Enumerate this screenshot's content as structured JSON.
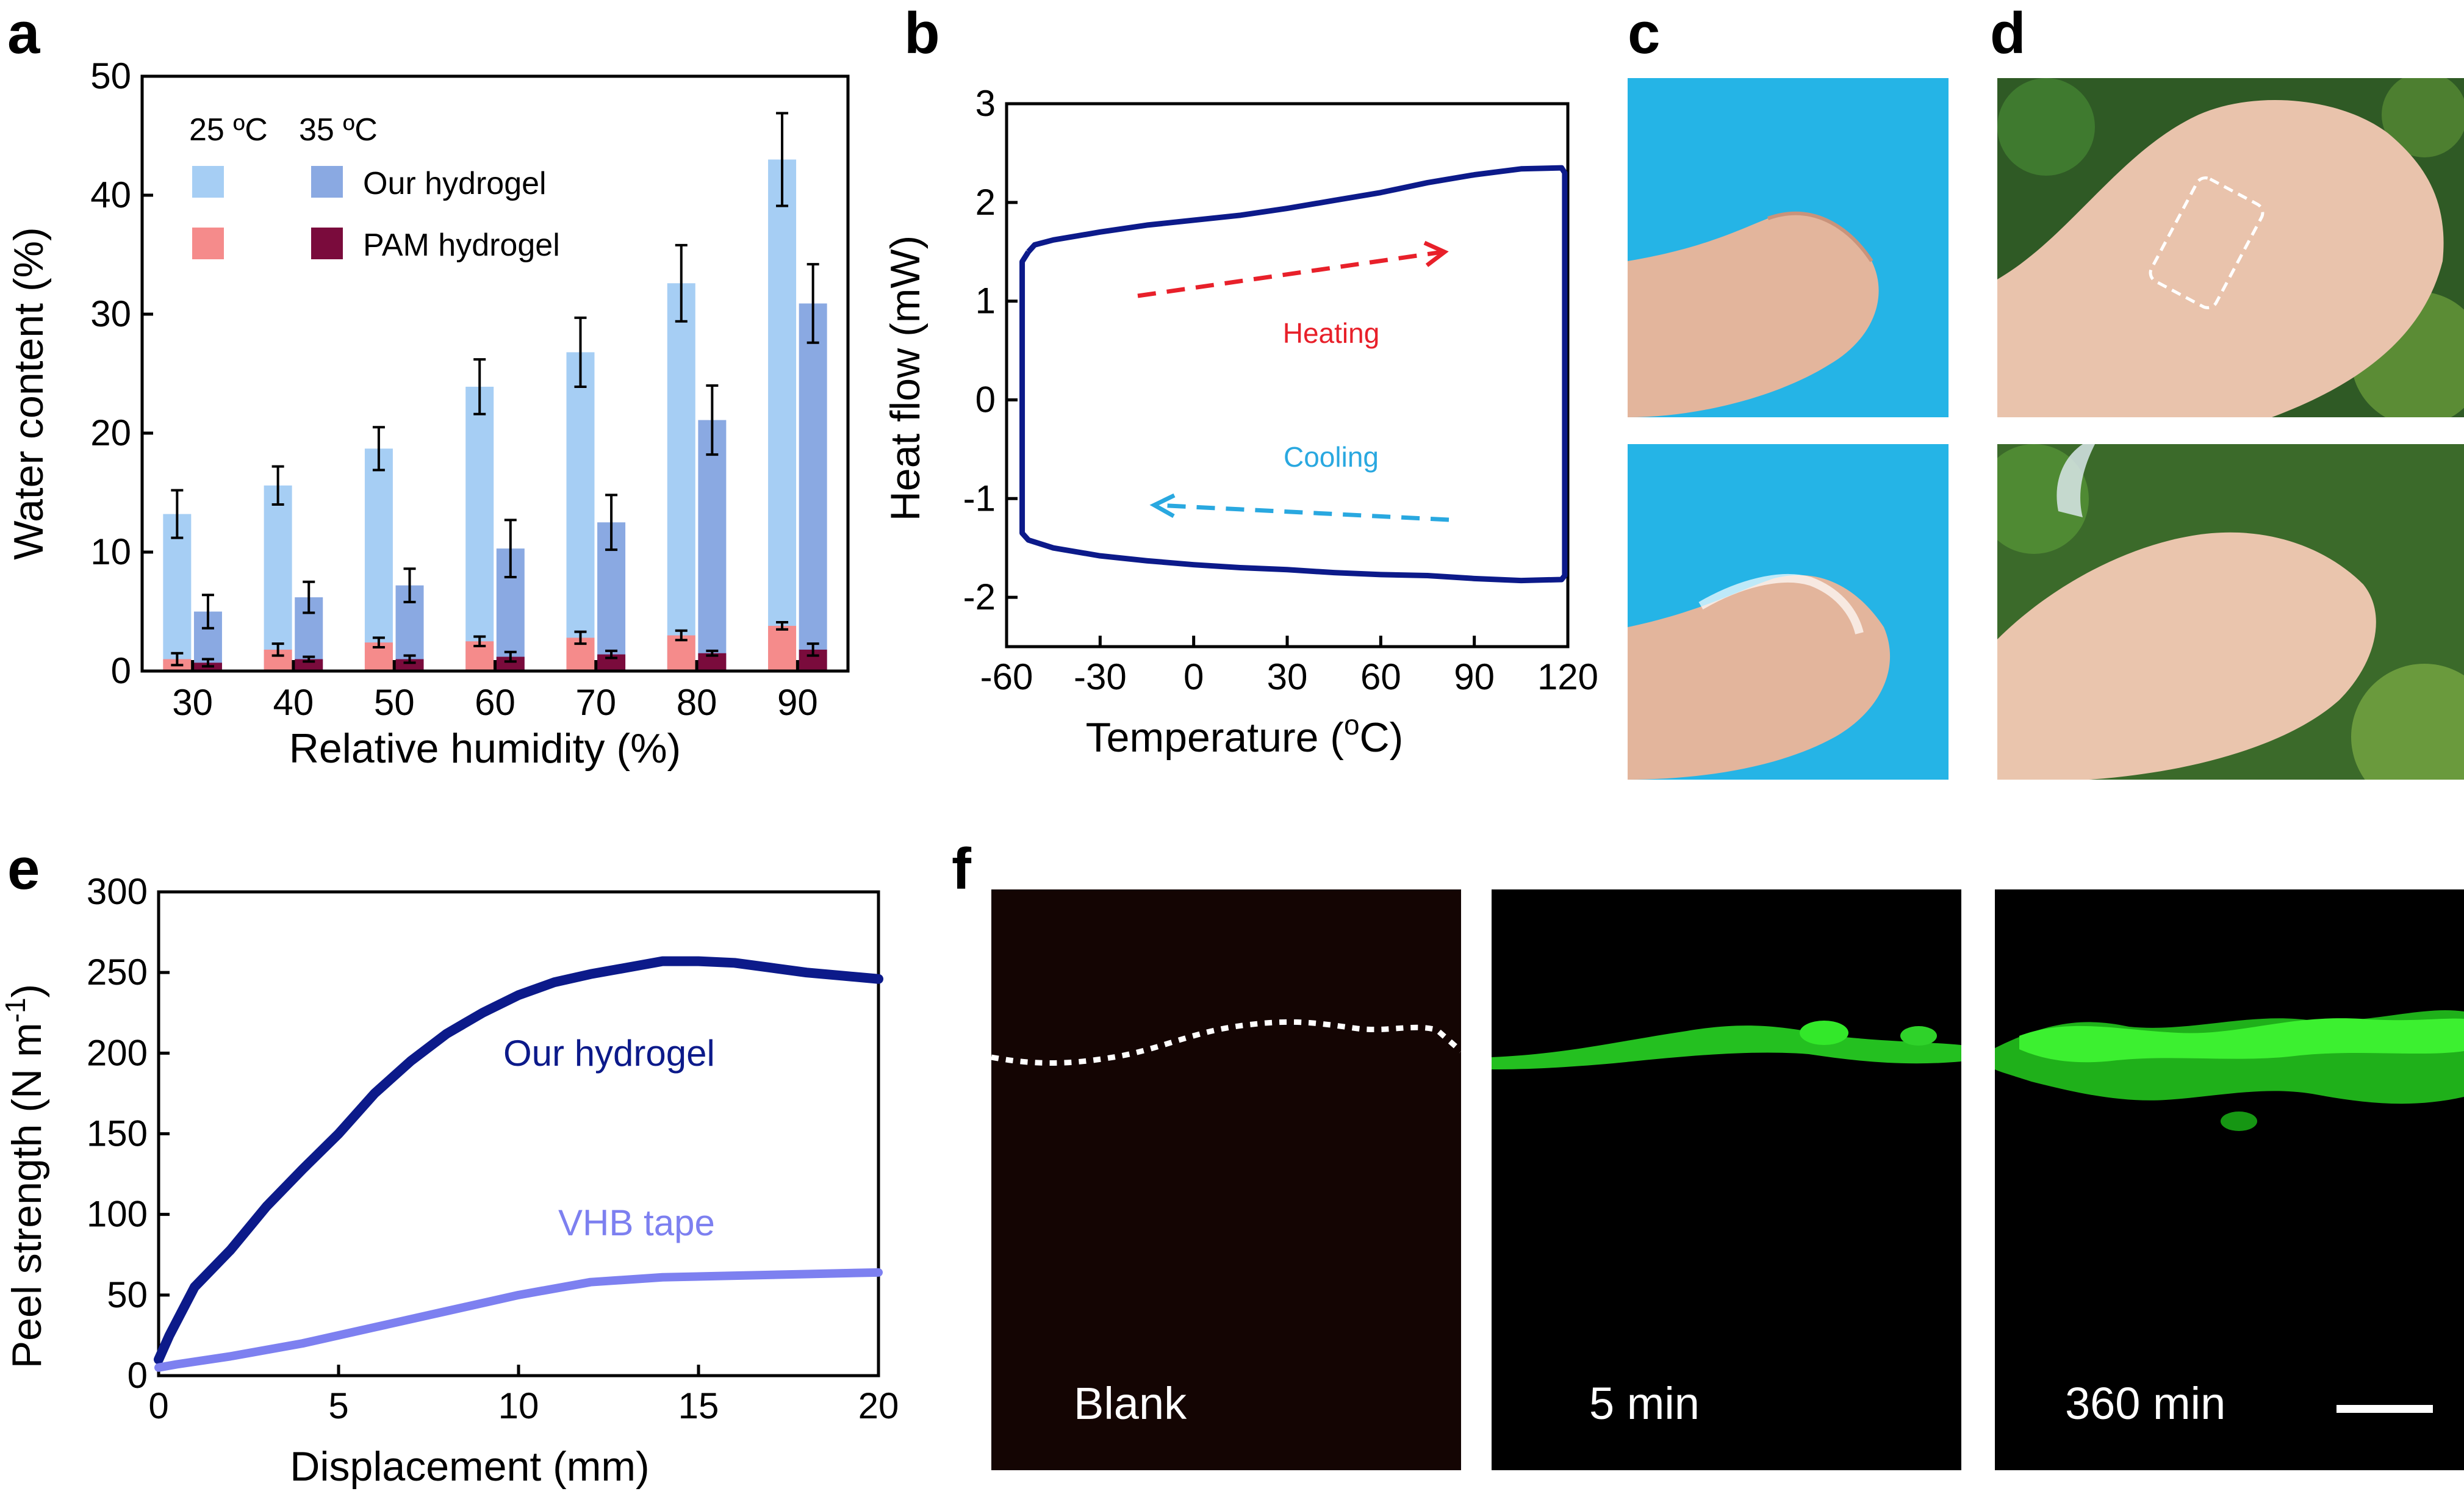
{
  "panels": {
    "a": "a",
    "b": "b",
    "c": "c",
    "d": "d",
    "e": "e",
    "f": "f"
  },
  "chart_data": [
    {
      "id": "a",
      "type": "bar",
      "title": "",
      "xlabel": "Relative humidity (%)",
      "ylabel": "Water content (%)",
      "ylim": [
        0,
        50
      ],
      "yticks": [
        0,
        10,
        20,
        30,
        40,
        50
      ],
      "categories": [
        "30",
        "40",
        "50",
        "60",
        "70",
        "80",
        "90"
      ],
      "legend": {
        "placement": "top-left",
        "header_25": "25 ºC",
        "header_35": "35 ºC",
        "our_label": "Our hydrogel",
        "pam_label": "PAM hydrogel"
      },
      "series": [
        {
          "name": "Our hydrogel 25 ºC",
          "color": "#a6cef4",
          "values": [
            13.2,
            15.6,
            18.7,
            23.9,
            26.8,
            32.6,
            43.0
          ],
          "errors": [
            2.0,
            1.6,
            1.8,
            2.3,
            2.9,
            3.2,
            3.9
          ]
        },
        {
          "name": "Our hydrogel 35 ºC",
          "color": "#8aa9e2",
          "values": [
            5.0,
            6.2,
            7.2,
            10.3,
            12.5,
            21.1,
            30.9
          ],
          "errors": [
            1.4,
            1.3,
            1.4,
            2.4,
            2.3,
            2.9,
            3.3
          ]
        },
        {
          "name": "PAM hydrogel 25 ºC",
          "color": "#f58b8b",
          "values": [
            1.0,
            1.8,
            2.4,
            2.5,
            2.8,
            3.0,
            3.8
          ],
          "errors": [
            0.5,
            0.5,
            0.4,
            0.4,
            0.5,
            0.4,
            0.3
          ]
        },
        {
          "name": "PAM hydrogel 35 ºC",
          "color": "#7a0b3c",
          "values": [
            0.7,
            1.0,
            1.0,
            1.2,
            1.4,
            1.5,
            1.8
          ],
          "errors": [
            0.3,
            0.2,
            0.3,
            0.4,
            0.3,
            0.2,
            0.5
          ]
        }
      ]
    },
    {
      "id": "b",
      "type": "line",
      "title": "",
      "xlabel": "Temperature (ºC)",
      "ylabel": "Heat flow (mW)",
      "xlim": [
        -60,
        120
      ],
      "ylim": [
        -2.5,
        3
      ],
      "xticks": [
        -60,
        -30,
        0,
        30,
        60,
        90,
        120
      ],
      "yticks": [
        -2,
        -1,
        0,
        1,
        2,
        3
      ],
      "color": "#0c1a8a",
      "arrow_heating_color": "#e8202a",
      "arrow_cooling_color": "#29a8e0",
      "annotations": {
        "heating": "Heating",
        "cooling": "Cooling"
      },
      "series": [
        {
          "name": "heating",
          "x": [
            -53,
            -51,
            -45,
            -30,
            -15,
            0,
            15,
            30,
            45,
            60,
            75,
            90,
            105,
            118
          ],
          "y": [
            1.5,
            1.57,
            1.62,
            1.7,
            1.77,
            1.82,
            1.87,
            1.94,
            2.02,
            2.1,
            2.2,
            2.28,
            2.34,
            2.35
          ]
        },
        {
          "name": "cooling",
          "x": [
            118,
            105,
            90,
            75,
            60,
            45,
            30,
            15,
            0,
            -15,
            -30,
            -45,
            -53
          ],
          "y": [
            -1.82,
            -1.83,
            -1.81,
            -1.78,
            -1.77,
            -1.75,
            -1.72,
            -1.7,
            -1.67,
            -1.63,
            -1.58,
            -1.5,
            -1.42
          ]
        }
      ]
    },
    {
      "id": "e",
      "type": "line",
      "title": "",
      "xlabel": "Displacement (mm)",
      "ylabel": "Peel strength (N m⁻¹)",
      "xlim": [
        0,
        20
      ],
      "ylim": [
        0,
        300
      ],
      "xticks": [
        0,
        5,
        10,
        15,
        20
      ],
      "yticks": [
        0,
        50,
        100,
        150,
        200,
        250,
        300
      ],
      "series": [
        {
          "name": "Our hydrogel",
          "color": "#0c1a8a",
          "x": [
            0,
            0.3,
            1,
            2,
            3,
            4,
            5,
            6,
            7,
            8,
            9,
            10,
            11,
            12,
            13,
            14,
            15,
            16,
            17,
            18,
            19,
            20
          ],
          "y": [
            10,
            25,
            55,
            78,
            105,
            128,
            150,
            175,
            195,
            212,
            225,
            236,
            244,
            249,
            253,
            257,
            257,
            256,
            253,
            250,
            248,
            246
          ]
        },
        {
          "name": "VHB tape",
          "color": "#7d80f0",
          "x": [
            0,
            0.5,
            2,
            4,
            6,
            8,
            10,
            12,
            14,
            16,
            18,
            20
          ],
          "y": [
            5,
            7,
            12,
            20,
            30,
            40,
            50,
            58,
            61,
            62,
            63,
            64
          ]
        }
      ]
    }
  ],
  "micrographs": {
    "blank": "Blank",
    "t5": "5 min",
    "t360": "360 min"
  }
}
